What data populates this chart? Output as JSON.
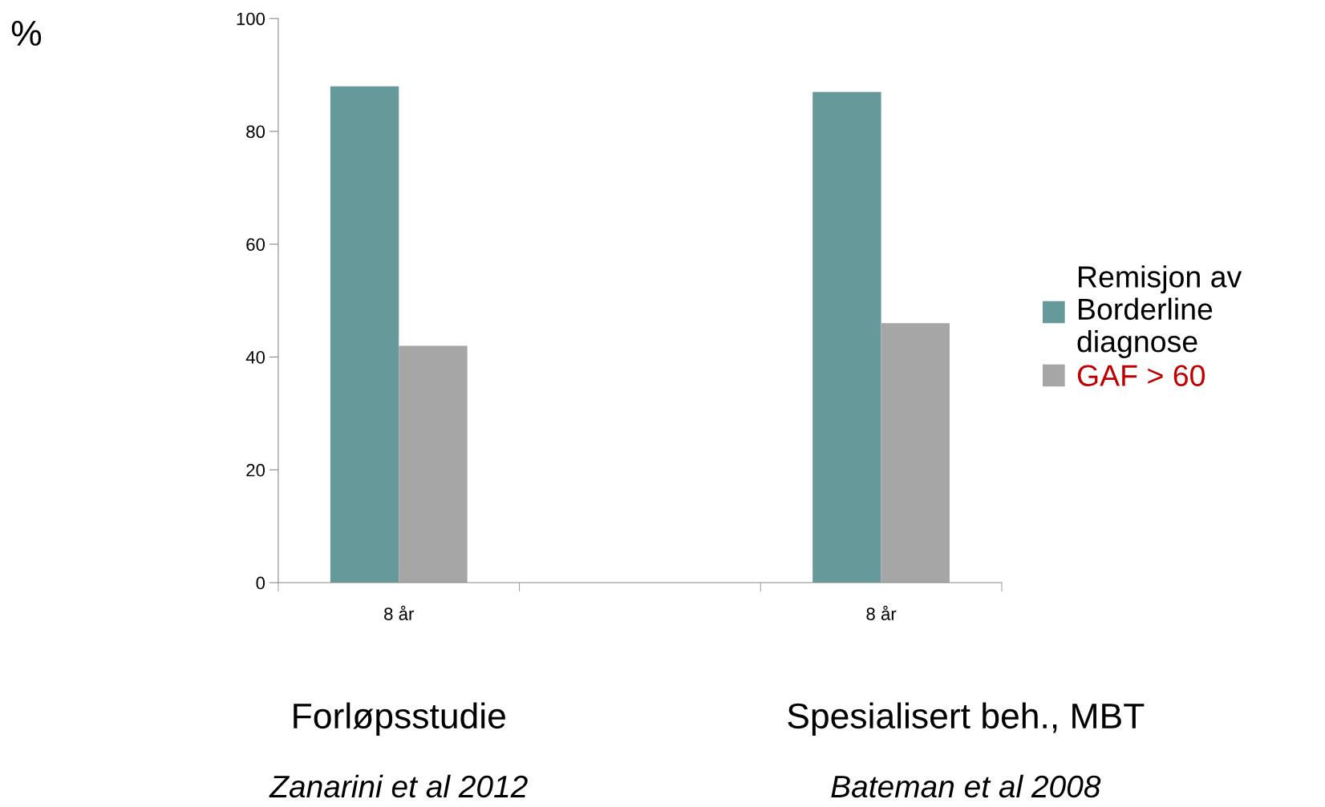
{
  "chart_data": {
    "type": "bar",
    "categories": [
      "8 år",
      null,
      "8 år"
    ],
    "series": [
      {
        "name": "Remisjon av Borderline diagnose",
        "color": "#669999",
        "values": [
          88,
          null,
          87
        ]
      },
      {
        "name": "GAF > 60",
        "color": "#a6a6a6",
        "values": [
          42,
          null,
          46
        ]
      }
    ],
    "ylim": [
      0,
      100
    ],
    "yticks": [
      0,
      20,
      40,
      60,
      80,
      100
    ],
    "grid": false,
    "legend": "right",
    "annotations": [
      "%",
      "Forløpsstudie",
      "Zanarini et al 2012",
      "Spesialisert beh., MBT",
      "Bateman et al 2008"
    ]
  }
}
